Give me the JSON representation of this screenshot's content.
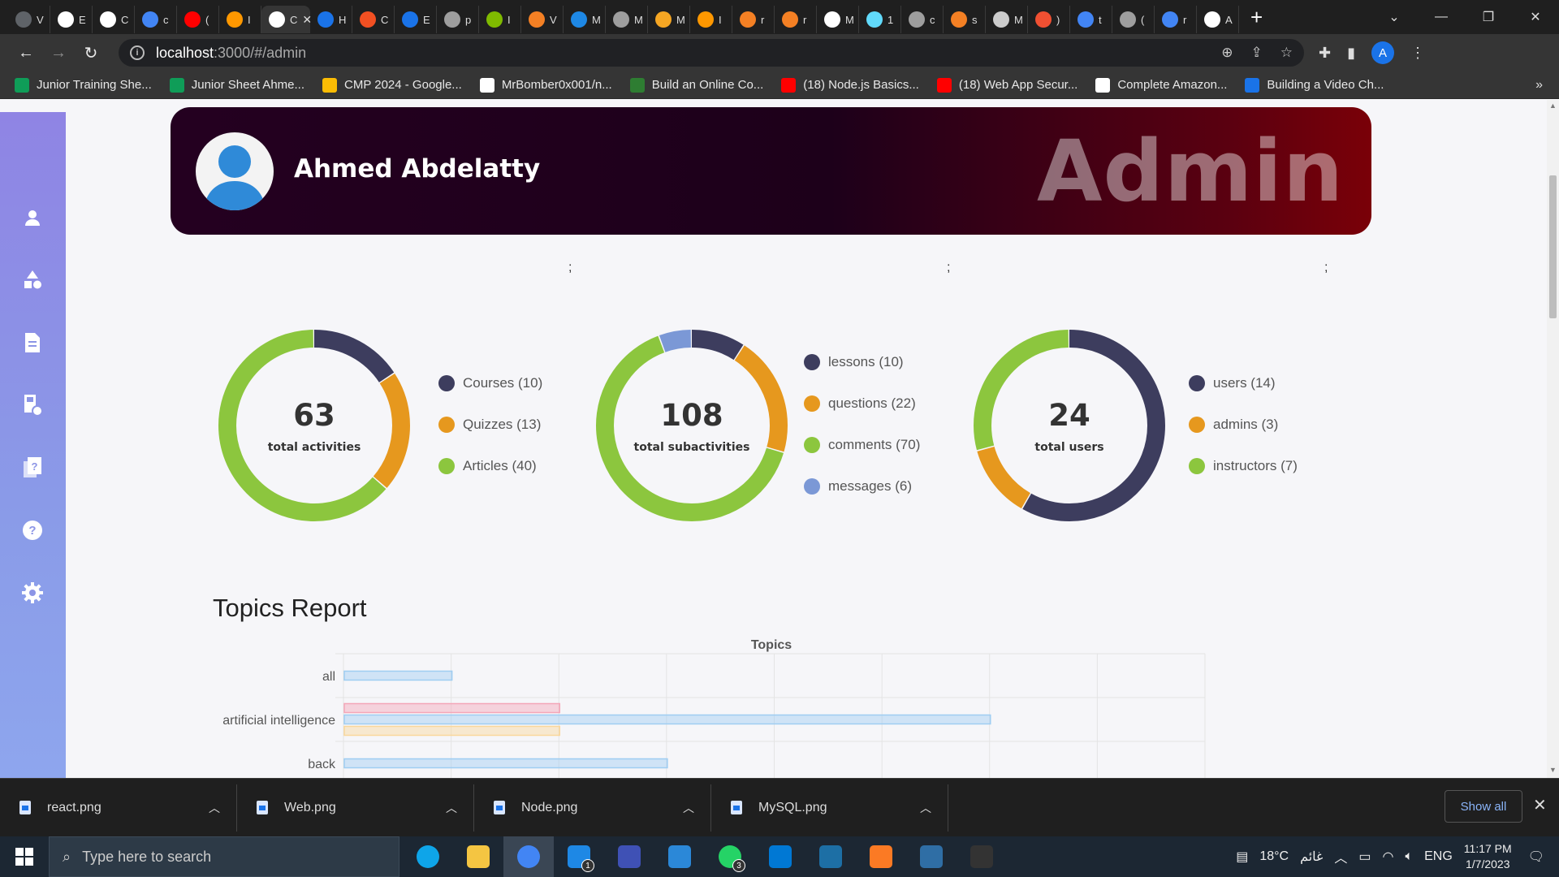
{
  "browser": {
    "tabs": [
      {
        "label": "V",
        "color": "#5f6368"
      },
      {
        "label": "E",
        "color": "#ffffff"
      },
      {
        "label": "C",
        "color": "#ffffff"
      },
      {
        "label": "c",
        "color": "#4285f4"
      },
      {
        "label": "(",
        "color": "#ff0000"
      },
      {
        "label": "I",
        "color": "#ff9800"
      },
      {
        "label": "",
        "color": "#ffffff"
      },
      {
        "label": "H",
        "color": "#1a73e8"
      },
      {
        "label": "C",
        "color": "#f25022"
      },
      {
        "label": "E",
        "color": "#1a73e8"
      },
      {
        "label": "p",
        "color": "#9e9e9e"
      },
      {
        "label": "I",
        "color": "#7fba00"
      },
      {
        "label": "V",
        "color": "#f48024"
      },
      {
        "label": "M",
        "color": "#1e88e5"
      },
      {
        "label": "M",
        "color": "#9e9e9e"
      },
      {
        "label": "M",
        "color": "#f5a623"
      },
      {
        "label": "I",
        "color": "#ff9800"
      },
      {
        "label": "r",
        "color": "#f48024"
      },
      {
        "label": "r",
        "color": "#f48024"
      },
      {
        "label": "M",
        "color": "#ffffff"
      },
      {
        "label": "1",
        "color": "#61dafb"
      },
      {
        "label": "c",
        "color": "#9e9e9e"
      },
      {
        "label": "s",
        "color": "#f48024"
      },
      {
        "label": "M",
        "color": "#cccccc"
      },
      {
        "label": ")",
        "color": "#f05032"
      },
      {
        "label": "t",
        "color": "#4285f4"
      },
      {
        "label": "(",
        "color": "#9e9e9e"
      },
      {
        "label": "r",
        "color": "#4285f4"
      },
      {
        "label": "A",
        "color": "#ffffff"
      }
    ],
    "active_tab_label": "C",
    "url_host": "localhost",
    "url_path": ":3000/#/admin",
    "profile_initial": "A",
    "bookmarks": [
      {
        "label": "Junior Training She...",
        "color": "#0f9d58"
      },
      {
        "label": "Junior Sheet Ahme...",
        "color": "#0f9d58"
      },
      {
        "label": "CMP 2024 - Google...",
        "color": "#fbbc04"
      },
      {
        "label": "MrBomber0x001/n...",
        "color": "#ffffff"
      },
      {
        "label": "Build an Online Co...",
        "color": "#2e7d32"
      },
      {
        "label": "(18) Node.js Basics...",
        "color": "#ff0000"
      },
      {
        "label": "(18) Web App Secur...",
        "color": "#ff0000"
      },
      {
        "label": "Complete Amazon...",
        "color": "#ffffff"
      },
      {
        "label": "Building a Video Ch...",
        "color": "#1a73e8"
      }
    ]
  },
  "sidebar": {
    "items": [
      {
        "name": "users-icon"
      },
      {
        "name": "shapes-icon"
      },
      {
        "name": "article-icon"
      },
      {
        "name": "course-icon"
      },
      {
        "name": "quiz-icon"
      },
      {
        "name": "help-icon"
      },
      {
        "name": "settings-icon"
      }
    ]
  },
  "banner": {
    "name": "Ahmed Abdelatty",
    "role": "Admin"
  },
  "separators": [
    ";",
    ";",
    ";"
  ],
  "colors": {
    "navy": "#3d3d5e",
    "orange": "#e6981e",
    "green": "#8cc63e",
    "blue": "#7b98d6"
  },
  "donuts": [
    {
      "value": "63",
      "label": "total activities",
      "legend": [
        {
          "text": "Courses (10)",
          "value": 10,
          "color": "#3d3d5e"
        },
        {
          "text": "Quizzes (13)",
          "value": 13,
          "color": "#e6981e"
        },
        {
          "text": "Articles (40)",
          "value": 40,
          "color": "#8cc63e"
        }
      ]
    },
    {
      "value": "108",
      "label": "total subactivities",
      "legend": [
        {
          "text": "lessons (10)",
          "value": 10,
          "color": "#3d3d5e"
        },
        {
          "text": "questions (22)",
          "value": 22,
          "color": "#e6981e"
        },
        {
          "text": "comments (70)",
          "value": 70,
          "color": "#8cc63e"
        },
        {
          "text": "messages (6)",
          "value": 6,
          "color": "#7b98d6"
        }
      ]
    },
    {
      "value": "24",
      "label": "total users",
      "legend": [
        {
          "text": "users (14)",
          "value": 14,
          "color": "#3d3d5e"
        },
        {
          "text": "admins (3)",
          "value": 3,
          "color": "#e6981e"
        },
        {
          "text": "instructors (7)",
          "value": 7,
          "color": "#8cc63e"
        }
      ]
    }
  ],
  "topics_report": {
    "heading": "Topics Report"
  },
  "chart_data": {
    "type": "bar",
    "orientation": "horizontal",
    "title": "Topics",
    "categories": [
      "all",
      "artificial intelligence",
      "back"
    ],
    "series": [
      {
        "color": "#f4a6b8",
        "values": [
          0,
          2,
          0
        ]
      },
      {
        "color": "#9fcdf2",
        "values": [
          1,
          6,
          3
        ]
      },
      {
        "color": "#f9d79c",
        "values": [
          0,
          2,
          0
        ]
      }
    ],
    "xlim": [
      0,
      8
    ],
    "grid": true,
    "legend": "none"
  },
  "downloads": {
    "items": [
      "react.png",
      "Web.png",
      "Node.png",
      "MySQL.png"
    ],
    "show_all": "Show all"
  },
  "taskbar": {
    "search_placeholder": "Type here to search",
    "apps": [
      {
        "name": "edge-app",
        "color": "#0ea5e9"
      },
      {
        "name": "explorer-app",
        "color": "#f4c542"
      },
      {
        "name": "chrome-app",
        "color": "#4285f4"
      },
      {
        "name": "mail-app",
        "color": "#1e88e5",
        "badge": "1"
      },
      {
        "name": "app-m",
        "color": "#3f51b5"
      },
      {
        "name": "todo-app",
        "color": "#2b88d8"
      },
      {
        "name": "whatsapp-app",
        "color": "#25d366",
        "badge": "3"
      },
      {
        "name": "vscode-app",
        "color": "#0078d4"
      },
      {
        "name": "mysql-workbench-app",
        "color": "#1d6fa5"
      },
      {
        "name": "xampp-app",
        "color": "#fb7a24"
      },
      {
        "name": "workbench-app",
        "color": "#2f6ea5"
      },
      {
        "name": "terminal-app",
        "color": "#333333"
      }
    ],
    "weather": "18°C",
    "weather_label": "غائم",
    "language": "ENG",
    "time": "11:17 PM",
    "date": "1/7/2023"
  }
}
